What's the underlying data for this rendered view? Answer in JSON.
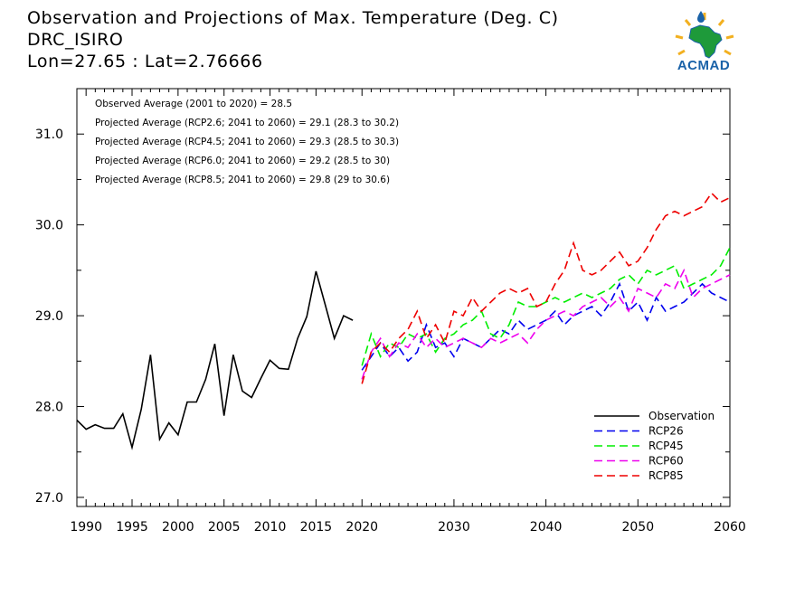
{
  "title_lines": [
    "Observation and Projections of Max. Temperature (Deg. C)",
    "DRC_ISIRO",
    "Lon=27.65 : Lat=2.76666"
  ],
  "logo_text": "ACMAD",
  "annotations": [
    "Observed Average (2001 to 2020) = 28.5",
    "Projected Average (RCP2.6; 2041 to 2060) = 29.1 (28.3 to 30.2)",
    "Projected Average (RCP4.5; 2041 to 2060) = 29.3 (28.5 to 30.3)",
    "Projected Average (RCP6.0; 2041 to 2060) = 29.2 (28.5 to 30)",
    "Projected Average (RCP8.5; 2041 to 2060) = 29.8 (29 to 30.6)"
  ],
  "chart_data": {
    "type": "line",
    "xlim": [
      1989,
      2060
    ],
    "ylim": [
      26.9,
      31.5
    ],
    "x_ticks": [
      1990,
      1995,
      2000,
      2005,
      2010,
      2015,
      2020,
      2030,
      2040,
      2050,
      2060
    ],
    "y_ticks": [
      27.0,
      28.0,
      29.0,
      30.0,
      31.0
    ],
    "y_tick_labels": [
      "27.0",
      "28.0",
      "29.0",
      "30.0",
      "31.0"
    ],
    "legend_position": "bottom-right",
    "series": [
      {
        "name": "Observation",
        "color": "#000000",
        "dashed": false,
        "x": [
          1989,
          1990,
          1991,
          1992,
          1993,
          1994,
          1995,
          1996,
          1997,
          1998,
          1999,
          2000,
          2001,
          2002,
          2003,
          2004,
          2005,
          2006,
          2007,
          2008,
          2009,
          2010,
          2011,
          2012,
          2013,
          2014,
          2015,
          2016,
          2017,
          2018,
          2019
        ],
        "y": [
          27.85,
          27.75,
          27.8,
          27.76,
          27.76,
          27.92,
          27.55,
          27.97,
          28.57,
          27.64,
          27.82,
          27.69,
          28.05,
          28.05,
          28.3,
          28.69,
          27.9,
          28.57,
          28.17,
          28.1,
          28.31,
          28.51,
          28.42,
          28.41,
          28.75,
          28.99,
          29.49,
          29.12,
          28.75,
          29.0,
          28.95
        ]
      },
      {
        "name": "RCP26",
        "color": "#0000ee",
        "dashed": true,
        "x": [
          2020,
          2021,
          2022,
          2023,
          2024,
          2025,
          2026,
          2027,
          2028,
          2029,
          2030,
          2031,
          2032,
          2033,
          2034,
          2035,
          2036,
          2037,
          2038,
          2039,
          2040,
          2041,
          2042,
          2043,
          2044,
          2045,
          2046,
          2047,
          2048,
          2049,
          2050,
          2051,
          2052,
          2053,
          2054,
          2055,
          2056,
          2057,
          2058,
          2059,
          2060
        ],
        "y": [
          28.4,
          28.55,
          28.7,
          28.55,
          28.65,
          28.5,
          28.6,
          28.9,
          28.65,
          28.7,
          28.55,
          28.75,
          28.7,
          28.65,
          28.75,
          28.85,
          28.8,
          28.95,
          28.85,
          28.9,
          28.95,
          29.05,
          28.9,
          29.0,
          29.05,
          29.1,
          29.0,
          29.15,
          29.35,
          29.05,
          29.15,
          28.95,
          29.2,
          29.05,
          29.1,
          29.15,
          29.25,
          29.35,
          29.25,
          29.2,
          29.15
        ]
      },
      {
        "name": "RCP45",
        "color": "#00ee00",
        "dashed": true,
        "x": [
          2020,
          2021,
          2022,
          2023,
          2024,
          2025,
          2026,
          2027,
          2028,
          2029,
          2030,
          2031,
          2032,
          2033,
          2034,
          2035,
          2036,
          2037,
          2038,
          2039,
          2040,
          2041,
          2042,
          2043,
          2044,
          2045,
          2046,
          2047,
          2048,
          2049,
          2050,
          2051,
          2052,
          2053,
          2054,
          2055,
          2056,
          2057,
          2058,
          2059,
          2060
        ],
        "y": [
          28.45,
          28.8,
          28.55,
          28.7,
          28.65,
          28.8,
          28.75,
          28.8,
          28.6,
          28.75,
          28.8,
          28.9,
          28.95,
          29.05,
          28.8,
          28.75,
          28.9,
          29.15,
          29.1,
          29.1,
          29.15,
          29.2,
          29.15,
          29.2,
          29.25,
          29.2,
          29.25,
          29.3,
          29.4,
          29.45,
          29.35,
          29.5,
          29.45,
          29.5,
          29.55,
          29.3,
          29.35,
          29.4,
          29.45,
          29.55,
          29.75
        ]
      },
      {
        "name": "RCP60",
        "color": "#ee00ee",
        "dashed": true,
        "x": [
          2020,
          2021,
          2022,
          2023,
          2024,
          2025,
          2026,
          2027,
          2028,
          2029,
          2030,
          2031,
          2032,
          2033,
          2034,
          2035,
          2036,
          2037,
          2038,
          2039,
          2040,
          2041,
          2042,
          2043,
          2044,
          2045,
          2046,
          2047,
          2048,
          2049,
          2050,
          2051,
          2052,
          2053,
          2054,
          2055,
          2056,
          2057,
          2058,
          2059,
          2060
        ],
        "y": [
          28.3,
          28.6,
          28.75,
          28.55,
          28.7,
          28.65,
          28.8,
          28.65,
          28.75,
          28.65,
          28.7,
          28.75,
          28.7,
          28.65,
          28.75,
          28.7,
          28.75,
          28.8,
          28.7,
          28.85,
          28.95,
          29.0,
          29.05,
          29.0,
          29.1,
          29.15,
          29.2,
          29.1,
          29.2,
          29.05,
          29.3,
          29.25,
          29.2,
          29.35,
          29.3,
          29.5,
          29.2,
          29.3,
          29.35,
          29.4,
          29.45
        ]
      },
      {
        "name": "RCP85",
        "color": "#ee0000",
        "dashed": true,
        "x": [
          2020,
          2021,
          2022,
          2023,
          2024,
          2025,
          2026,
          2027,
          2028,
          2029,
          2030,
          2031,
          2032,
          2033,
          2034,
          2035,
          2036,
          2037,
          2038,
          2039,
          2040,
          2041,
          2042,
          2043,
          2044,
          2045,
          2046,
          2047,
          2048,
          2049,
          2050,
          2051,
          2052,
          2053,
          2054,
          2055,
          2056,
          2057,
          2058,
          2059,
          2060
        ],
        "y": [
          28.25,
          28.6,
          28.7,
          28.6,
          28.75,
          28.85,
          29.05,
          28.75,
          28.9,
          28.7,
          29.05,
          29.0,
          29.2,
          29.05,
          29.15,
          29.25,
          29.3,
          29.25,
          29.3,
          29.1,
          29.15,
          29.35,
          29.5,
          29.8,
          29.5,
          29.45,
          29.5,
          29.6,
          29.7,
          29.55,
          29.6,
          29.75,
          29.95,
          30.1,
          30.15,
          30.1,
          30.15,
          30.2,
          30.35,
          30.25,
          30.3
        ]
      }
    ]
  }
}
